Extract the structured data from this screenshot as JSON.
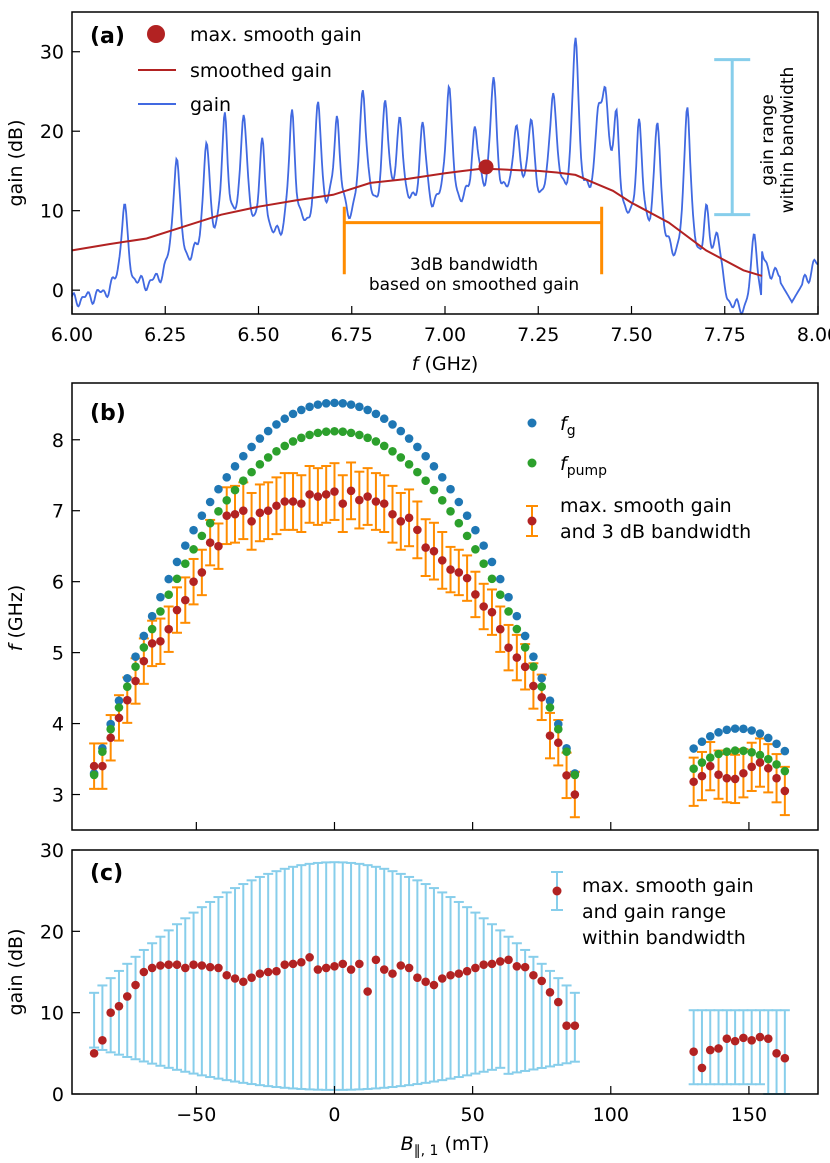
{
  "chart_data": [
    {
      "panel": "(a)",
      "type": "line",
      "xlabel_var": "f",
      "xlabel_unit": "(GHz)",
      "ylabel": "gain (dB)",
      "xlim": [
        6.0,
        8.0
      ],
      "ylim": [
        -3,
        35
      ],
      "xticks": [
        6.0,
        6.25,
        6.5,
        6.75,
        7.0,
        7.25,
        7.5,
        7.75,
        8.0
      ],
      "xtick_labels": [
        "6.00",
        "6.25",
        "6.50",
        "6.75",
        "7.00",
        "7.25",
        "7.50",
        "7.75",
        "8.00"
      ],
      "yticks": [
        0,
        10,
        20,
        30
      ],
      "ytick_labels": [
        "0",
        "10",
        "20",
        "30"
      ],
      "legend": [
        "max. smooth gain",
        "smoothed gain",
        "gain"
      ],
      "series": [
        {
          "name": "gain",
          "color": "#4169e1",
          "peaks": [
            [
              6.14,
              10.5
            ],
            [
              6.28,
              16.5
            ],
            [
              6.36,
              17.0
            ],
            [
              6.41,
              20.0
            ],
            [
              6.46,
              21.0
            ],
            [
              6.51,
              16.5
            ],
            [
              6.59,
              21.0
            ],
            [
              6.66,
              22.0
            ],
            [
              6.71,
              20.5
            ],
            [
              6.78,
              24.5
            ],
            [
              6.84,
              21.5
            ],
            [
              6.88,
              19.5
            ],
            [
              6.94,
              19.5
            ],
            [
              7.01,
              24.5
            ],
            [
              7.08,
              19.0
            ],
            [
              7.13,
              25.0
            ],
            [
              7.19,
              19.0
            ],
            [
              7.23,
              19.5
            ],
            [
              7.29,
              24.0
            ],
            [
              7.35,
              30.0
            ],
            [
              7.41,
              18.0
            ],
            [
              7.43,
              21.0
            ],
            [
              7.46,
              18.5
            ],
            [
              7.52,
              19.0
            ],
            [
              7.57,
              19.5
            ],
            [
              7.65,
              22.5
            ],
            [
              7.7,
              8.0
            ],
            [
              7.73,
              6.0
            ],
            [
              7.83,
              7.0
            ],
            [
              7.93,
              3.5
            ],
            [
              7.99,
              3.5
            ]
          ]
        },
        {
          "name": "smoothed gain",
          "color": "#b22222",
          "x": [
            6.0,
            6.1,
            6.2,
            6.3,
            6.4,
            6.5,
            6.6,
            6.7,
            6.8,
            6.9,
            7.0,
            7.05,
            7.1,
            7.15,
            7.2,
            7.25,
            7.3,
            7.35,
            7.4,
            7.45,
            7.5,
            7.6,
            7.7,
            7.8,
            7.85
          ],
          "y": [
            5.0,
            5.8,
            6.5,
            8.0,
            9.5,
            10.5,
            11.3,
            12.0,
            13.5,
            14.0,
            14.7,
            15.0,
            15.3,
            15.2,
            15.1,
            15.0,
            14.8,
            14.5,
            13.5,
            12.5,
            11.0,
            8.5,
            5.0,
            2.5,
            1.8
          ]
        }
      ],
      "marker": {
        "name": "max. smooth gain",
        "x": 7.11,
        "y": 15.5,
        "color": "#b22222"
      },
      "annotations": {
        "bandwidth": {
          "x0": 6.73,
          "x1": 7.42,
          "y": 8.5,
          "text1": "3dB bandwidth",
          "text2": "based on smoothed gain",
          "color": "#ff8c00"
        },
        "gain_range": {
          "x": 7.77,
          "y_low": 9.5,
          "y_high": 29.0,
          "text1": "gain range",
          "text2": "within bandwidth",
          "color": "#87ceeb"
        }
      }
    },
    {
      "panel": "(b)",
      "type": "scatter",
      "ylabel_var": "f",
      "ylabel_unit": "(GHz)",
      "xlim": [
        -95,
        175
      ],
      "ylim": [
        2.5,
        8.8
      ],
      "yticks": [
        3,
        4,
        5,
        6,
        7,
        8
      ],
      "ytick_labels": [
        "3",
        "4",
        "5",
        "6",
        "7",
        "8"
      ],
      "legend_fg_main": "f",
      "legend_fg_sub": "g",
      "legend_pump_main": "f",
      "legend_pump_sub": "pump",
      "legend_max_1": "max. smooth gain",
      "legend_max_2": "and 3 dB bandwidth",
      "colors": {
        "fg": "#1f77b4",
        "fpump": "#2ca02c",
        "max": "#b22222",
        "err": "#ff8c00"
      },
      "B": [
        -87,
        -84,
        -81,
        -78,
        -75,
        -72,
        -69,
        -66,
        -63,
        -60,
        -57,
        -54,
        -51,
        -48,
        -45,
        -42,
        -39,
        -36,
        -33,
        -30,
        -27,
        -24,
        -21,
        -18,
        -15,
        -12,
        -9,
        -6,
        -3,
        0,
        3,
        6,
        9,
        12,
        15,
        18,
        21,
        24,
        27,
        30,
        33,
        36,
        39,
        42,
        45,
        48,
        51,
        54,
        57,
        60,
        63,
        66,
        69,
        72,
        75,
        78,
        81,
        84,
        87,
        130,
        133,
        136,
        139,
        142,
        145,
        148,
        151,
        154,
        157,
        160,
        163
      ]
    },
    {
      "panel": "(c)",
      "type": "scatter",
      "ylabel": "gain (dB)",
      "xlabel_var": "B",
      "xlabel_sub": "∥, 1",
      "xlabel_unit": "(mT)",
      "xlim": [
        -95,
        175
      ],
      "ylim": [
        0,
        30
      ],
      "xticks": [
        -50,
        0,
        50,
        100,
        150
      ],
      "xtick_labels": [
        "−50",
        "0",
        "50",
        "100",
        "150"
      ],
      "yticks": [
        0,
        10,
        20,
        30
      ],
      "ytick_labels": [
        "0",
        "10",
        "20",
        "30"
      ],
      "legend_1": "max. smooth gain",
      "legend_2": "and  gain range",
      "legend_3": "within bandwidth",
      "colors": {
        "max": "#b22222",
        "err": "#87ceeb"
      },
      "B": [
        -87,
        -84,
        -81,
        -78,
        -75,
        -72,
        -69,
        -66,
        -63,
        -60,
        -57,
        -54,
        -51,
        -48,
        -45,
        -42,
        -39,
        -36,
        -33,
        -30,
        -27,
        -24,
        -21,
        -18,
        -15,
        -12,
        -9,
        -6,
        -3,
        0,
        3,
        6,
        9,
        12,
        15,
        18,
        21,
        24,
        27,
        30,
        33,
        36,
        39,
        42,
        45,
        48,
        51,
        54,
        57,
        60,
        63,
        66,
        69,
        72,
        75,
        78,
        81,
        84,
        87,
        130,
        133,
        136,
        139,
        142,
        145,
        148,
        151,
        154,
        157,
        160,
        163
      ]
    }
  ]
}
